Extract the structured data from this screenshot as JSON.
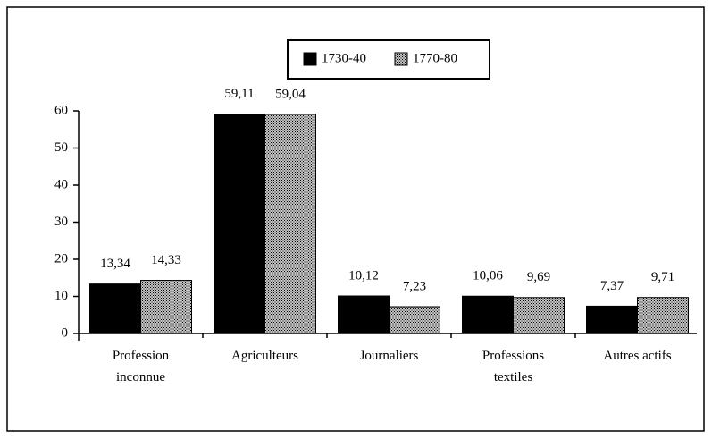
{
  "chart_data": {
    "type": "bar",
    "categories": [
      [
        "Profession",
        "inconnue"
      ],
      [
        "Agriculteurs"
      ],
      [
        "Journaliers"
      ],
      [
        "Professions",
        "textiles"
      ],
      [
        "Autres actifs"
      ]
    ],
    "series": [
      {
        "name": "1730-40",
        "color": "#000000",
        "values": [
          13.34,
          59.11,
          10.12,
          10.06,
          7.37
        ],
        "value_labels": [
          "13,34",
          "59,11",
          "10,12",
          "10,06",
          "7,37"
        ]
      },
      {
        "name": "1770-80",
        "color": "#c4c4c4",
        "values": [
          14.33,
          59.04,
          7.23,
          9.69,
          9.71
        ],
        "value_labels": [
          "14,33",
          "59,04",
          "7,23",
          "9,69",
          "9,71"
        ]
      }
    ],
    "ylim": [
      0,
      60
    ],
    "yticks": [
      0,
      10,
      20,
      30,
      40,
      50,
      60
    ],
    "grid": false,
    "legend": "top"
  }
}
